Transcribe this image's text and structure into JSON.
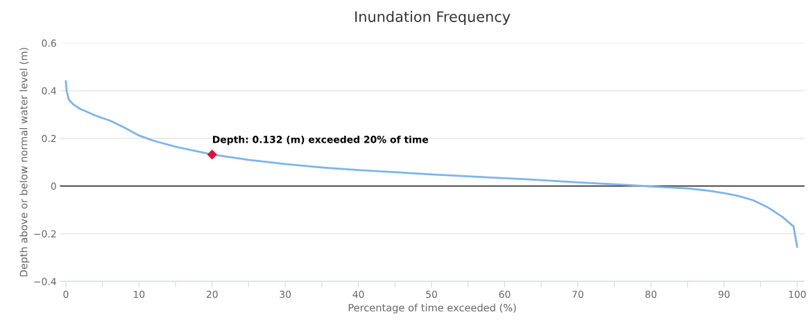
{
  "chart_data": {
    "type": "line",
    "title": "Inundation Frequency",
    "xlabel": "Percentage of time exceeded (%)",
    "ylabel": "Depth above or below normal water level (m)",
    "series": [
      {
        "color": "#7cb5ec",
        "marker": "none",
        "x": [
          0,
          0.1,
          0.4,
          1,
          2,
          3,
          4,
          5,
          6,
          8,
          10,
          12,
          15,
          20,
          25,
          30,
          35,
          40,
          45,
          50,
          55,
          60,
          65,
          70,
          75,
          78,
          80,
          85,
          88,
          90,
          92,
          94,
          96,
          98,
          99.5,
          100
        ],
        "values": [
          0.44,
          0.4,
          0.363,
          0.343,
          0.323,
          0.31,
          0.296,
          0.285,
          0.275,
          0.245,
          0.212,
          0.19,
          0.165,
          0.132,
          0.11,
          0.092,
          0.078,
          0.067,
          0.058,
          0.049,
          0.041,
          0.033,
          0.025,
          0.015,
          0.007,
          0.002,
          -0.002,
          -0.01,
          -0.02,
          -0.03,
          -0.042,
          -0.06,
          -0.09,
          -0.13,
          -0.17,
          -0.255
        ]
      },
      {
        "type": "scatter",
        "color": "#e0103b",
        "marker": "diamond",
        "x": [
          20
        ],
        "values": [
          0.132
        ]
      }
    ],
    "annotations": [
      {
        "text": "Depth: 0.132 (m) exceeded 20% of time",
        "x": 20,
        "y": 0.132
      }
    ],
    "ref_lines": [
      {
        "axis": "y",
        "value": 0,
        "color": "#333333"
      }
    ],
    "xlim": [
      -0.8,
      101
    ],
    "xticks": [
      0,
      {
        "value": 5,
        "label": null
      },
      10,
      {
        "value": 15,
        "label": null
      },
      20,
      {
        "value": 25,
        "label": null
      },
      30,
      {
        "value": 35,
        "label": null
      },
      40,
      {
        "value": 45,
        "label": null
      },
      50,
      {
        "value": 55,
        "label": null
      },
      60,
      {
        "value": 65,
        "label": null
      },
      70,
      {
        "value": 75,
        "label": null
      },
      80,
      {
        "value": 85,
        "label": null
      },
      90,
      {
        "value": 95,
        "label": null
      },
      100
    ],
    "ylim": [
      -0.4,
      0.6
    ],
    "yticks": [
      -0.4,
      -0.2,
      0,
      0.2,
      0.4,
      0.6
    ],
    "grid": "y",
    "legend": false
  }
}
